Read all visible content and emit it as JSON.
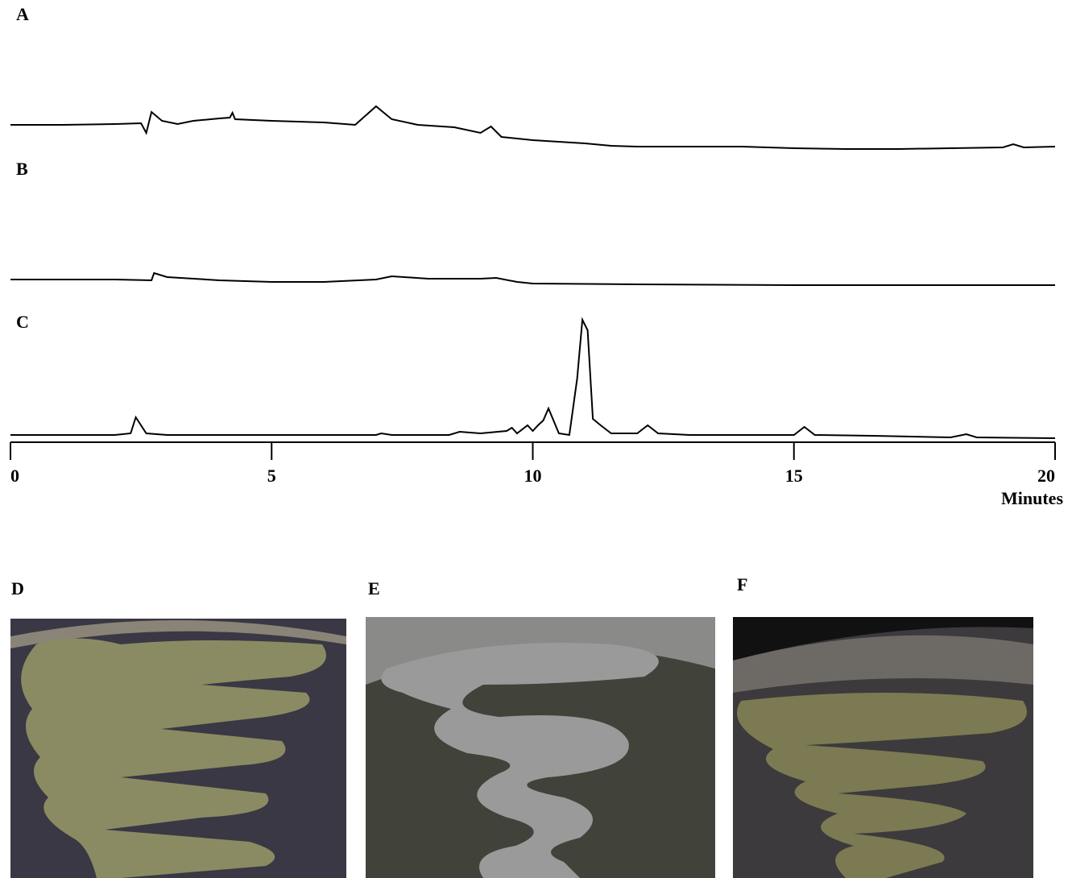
{
  "chart_data": [
    {
      "type": "line",
      "title": "A",
      "xlim": [
        0,
        20
      ],
      "x": [
        0,
        1,
        2,
        2.5,
        2.6,
        2.7,
        2.9,
        3.2,
        3.5,
        4,
        4.2,
        4.25,
        4.3,
        5,
        6,
        6.6,
        7,
        7.3,
        7.8,
        8.5,
        9,
        9.2,
        9.4,
        10,
        11,
        11.5,
        12,
        13,
        14,
        15,
        16,
        17,
        18,
        19,
        19.2,
        19.4,
        20
      ],
      "values": [
        35,
        35,
        36,
        37,
        25,
        51,
        40,
        36,
        40,
        43,
        44,
        50,
        42,
        40,
        38,
        35,
        58,
        42,
        35,
        32,
        25,
        33,
        20,
        16,
        12,
        9,
        8,
        8,
        8,
        6,
        5,
        5,
        6,
        7,
        11,
        7,
        8
      ],
      "color": "#000000"
    },
    {
      "type": "line",
      "title": "B",
      "xlim": [
        0,
        20
      ],
      "x": [
        0,
        2,
        2.7,
        2.75,
        3,
        4,
        5,
        6,
        7,
        7.3,
        8,
        9,
        9.3,
        9.7,
        10,
        12,
        15,
        20
      ],
      "values": [
        13,
        13,
        12,
        21,
        16,
        12,
        10,
        10,
        13,
        17,
        14,
        14,
        15,
        10,
        8,
        7,
        6,
        6
      ],
      "color": "#000000"
    },
    {
      "type": "line",
      "title": "C",
      "xlim": [
        0,
        20
      ],
      "xticks": [
        0,
        5,
        10,
        15,
        20
      ],
      "xlabel": "Minutes",
      "x": [
        0,
        2,
        2.3,
        2.4,
        2.6,
        3,
        7,
        7.1,
        7.3,
        8.4,
        8.6,
        9,
        9.5,
        9.6,
        9.7,
        9.9,
        10,
        10.1,
        10.2,
        10.3,
        10.5,
        10.7,
        10.85,
        10.95,
        11.05,
        11.15,
        11.3,
        11.5,
        12,
        12.2,
        12.4,
        13,
        14,
        15,
        15.2,
        15.4,
        16.5,
        18,
        18.3,
        18.5,
        20
      ],
      "values": [
        10,
        10,
        12,
        32,
        12,
        10,
        10,
        12,
        10,
        10,
        14,
        12,
        15,
        19,
        12,
        22,
        15,
        22,
        28,
        43,
        12,
        10,
        80,
        153,
        140,
        30,
        22,
        12,
        12,
        22,
        12,
        10,
        10,
        10,
        20,
        10,
        9,
        7,
        11,
        7,
        6
      ],
      "color": "#000000"
    }
  ],
  "photos": {
    "labels": [
      "D",
      "E",
      "F"
    ]
  }
}
